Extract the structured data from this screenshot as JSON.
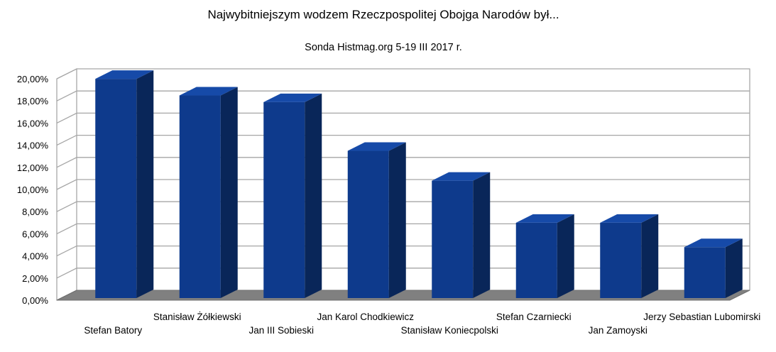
{
  "chart_data": {
    "type": "bar",
    "title": "Najwybitniejszym wodzem Rzeczpospolitej Obojga Narodów był...",
    "subtitle": "Sonda Histmag.org 5-19 III 2017 r.",
    "categories": [
      "Stefan Batory",
      "Stanisław Żółkiewski",
      "Jan III Sobieski",
      "Jan Karol Chodkiewicz",
      "Stanisław Koniecpolski",
      "Stefan Czarniecki",
      "Jan Zamoyski",
      "Jerzy Sebastian Lubomirski"
    ],
    "values": [
      19.8,
      18.3,
      17.7,
      13.3,
      10.6,
      6.8,
      6.8,
      4.6
    ],
    "unit": "%",
    "ylim": [
      0,
      20
    ],
    "yticks": [
      "0,00%",
      "2,00%",
      "4,00%",
      "6,00%",
      "8,00%",
      "10,00%",
      "12,00%",
      "14,00%",
      "16,00%",
      "18,00%",
      "20,00%"
    ],
    "grid": true,
    "three_d": true,
    "bar_color": "#0e3a8c",
    "bar_side_color": "#092659",
    "bar_top_color": "#164aa8",
    "floor_color": "#808080"
  }
}
